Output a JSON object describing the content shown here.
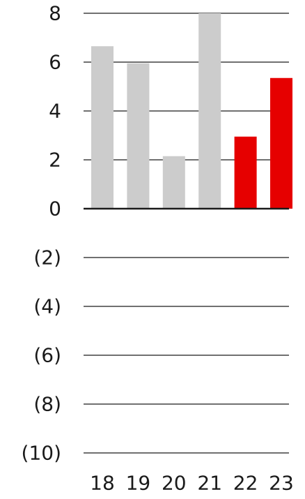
{
  "chart_data": {
    "type": "bar",
    "title": "",
    "xlabel": "",
    "ylabel": "",
    "categories": [
      "18",
      "19",
      "20",
      "21",
      "22",
      "23"
    ],
    "values": [
      6.65,
      5.95,
      2.15,
      8.0,
      2.95,
      5.35
    ],
    "bar_colors": [
      "#cccccc",
      "#cccccc",
      "#cccccc",
      "#cccccc",
      "#e60000",
      "#e60000"
    ],
    "ylim": [
      -10,
      8
    ],
    "yticks": [
      8,
      6,
      4,
      2,
      0,
      -2,
      -4,
      -6,
      -8,
      -10
    ],
    "ytick_labels": [
      "8",
      "6",
      "4",
      "2",
      "0",
      "(2)",
      "(4)",
      "(6)",
      "(8)",
      "(10)"
    ],
    "grid": true,
    "legend": "none"
  }
}
